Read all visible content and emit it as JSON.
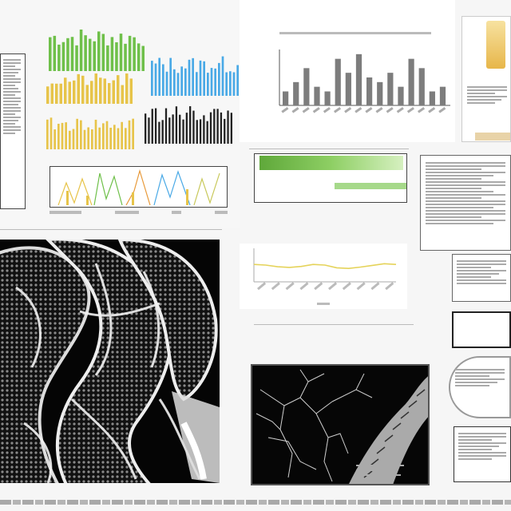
{
  "panels": {
    "top_left_title": "",
    "top_left_subtitle": "",
    "top_center_title": "",
    "mid_center_title": "",
    "mid_center_heading": "",
    "bottom_center_title": "",
    "bottom_center_subtitle": "",
    "right_heading_line1": "",
    "right_heading_line2": ""
  },
  "colors": {
    "green": "#6fc04a",
    "blue": "#49a9e6",
    "yellow": "#e7c44a",
    "gray_bar": "#7d7d7d",
    "line_yellow": "#e5d35a"
  },
  "chart_data": [
    {
      "type": "bar",
      "categories": [
        "",
        "",
        "",
        "",
        "",
        "",
        "",
        "",
        "",
        "",
        "",
        "",
        "",
        "",
        "",
        ""
      ],
      "values": [
        3,
        5,
        8,
        4,
        3,
        10,
        7,
        11,
        6,
        5,
        7,
        4,
        10,
        8,
        3,
        4
      ],
      "title": "",
      "xlabel": "",
      "ylabel": "",
      "ylim": [
        0,
        12
      ],
      "grid": false
    },
    {
      "type": "line",
      "x": [
        0,
        1,
        2,
        3,
        4,
        5,
        6,
        7,
        8,
        9,
        10,
        11,
        12
      ],
      "series": [
        {
          "values": [
            0.52,
            0.5,
            0.45,
            0.43,
            0.46,
            0.52,
            0.5,
            0.42,
            0.4,
            0.44,
            0.49,
            0.54,
            0.52
          ]
        }
      ],
      "title": "",
      "xlabel": "",
      "ylabel": "",
      "ylim": [
        0,
        1
      ]
    }
  ]
}
